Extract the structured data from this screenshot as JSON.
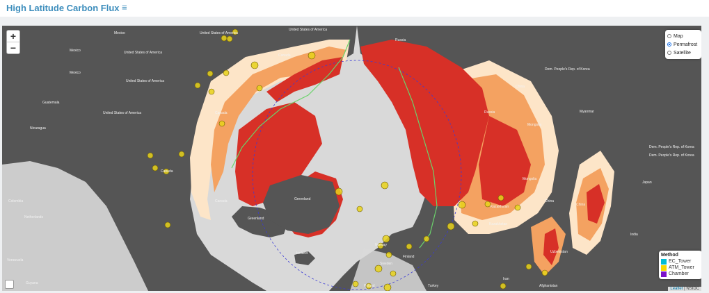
{
  "header": {
    "title": "High Latitude Carbon Flux",
    "menu_icon": "hamburger-icon"
  },
  "controls": {
    "zoom_in": "+",
    "zoom_out": "−"
  },
  "layers": {
    "options": [
      {
        "label": "Map",
        "selected": false
      },
      {
        "label": "Permafrost",
        "selected": true
      },
      {
        "label": "Satellite",
        "selected": false
      }
    ]
  },
  "legend": {
    "title": "Method",
    "items": [
      {
        "label": "EC_Tower",
        "color": "#00bcd4"
      },
      {
        "label": "ATM_Tower",
        "color": "#f5d800"
      },
      {
        "label": "Chamber",
        "color": "#7b12c9"
      }
    ]
  },
  "attribution": {
    "leaflet": "Leaflet",
    "source": "NSIDC"
  },
  "map_labels": {
    "mexico_1": "Mexico",
    "united_states_1": "United States of America",
    "canada_1": "Canada",
    "canada_2": "Canada",
    "canada_3": "Canada",
    "canada_4": "Canada",
    "usa_2": "United States of America",
    "usa_3": "United States of America",
    "usa_4": "United States of America",
    "usa_5": "United States of America",
    "mexico_2": "Mexico",
    "mexico_3": "Mexico",
    "guatemala": "Guatemala",
    "nicaragua": "Nicaragua",
    "venezuela": "Venezuela",
    "guyana": "Guyana",
    "colombia": "Colombia",
    "netherlands": "Netherlands",
    "greenland_1": "Greenland",
    "greenland_2": "Greenland",
    "iceland": "Iceland",
    "norway": "Norway",
    "sweden": "Sweden",
    "finland": "Finland",
    "russia_1": "Russia",
    "russia_2": "Russia",
    "kazakhstan": "Kazakhstan",
    "kazakhstan_2": "Kazakhstan",
    "uzbekistan": "Uzbekistan",
    "mongolia_1": "Mongolia",
    "mongolia_2": "Mongolia",
    "china_1": "China",
    "china_2": "China",
    "china_3": "China",
    "india": "India",
    "afghanistan": "Afghanistan",
    "iran": "Iran",
    "turkey": "Turkey",
    "poland": "Poland",
    "japan": "Japan",
    "north_korea": "Dem. People's Rep. of Korea",
    "korea_2": "Dem. People's Rep. of Korea",
    "myanmar": "Myanmar",
    "dem_rep_korea_3": "Dem. People's Rep. of Korea"
  }
}
